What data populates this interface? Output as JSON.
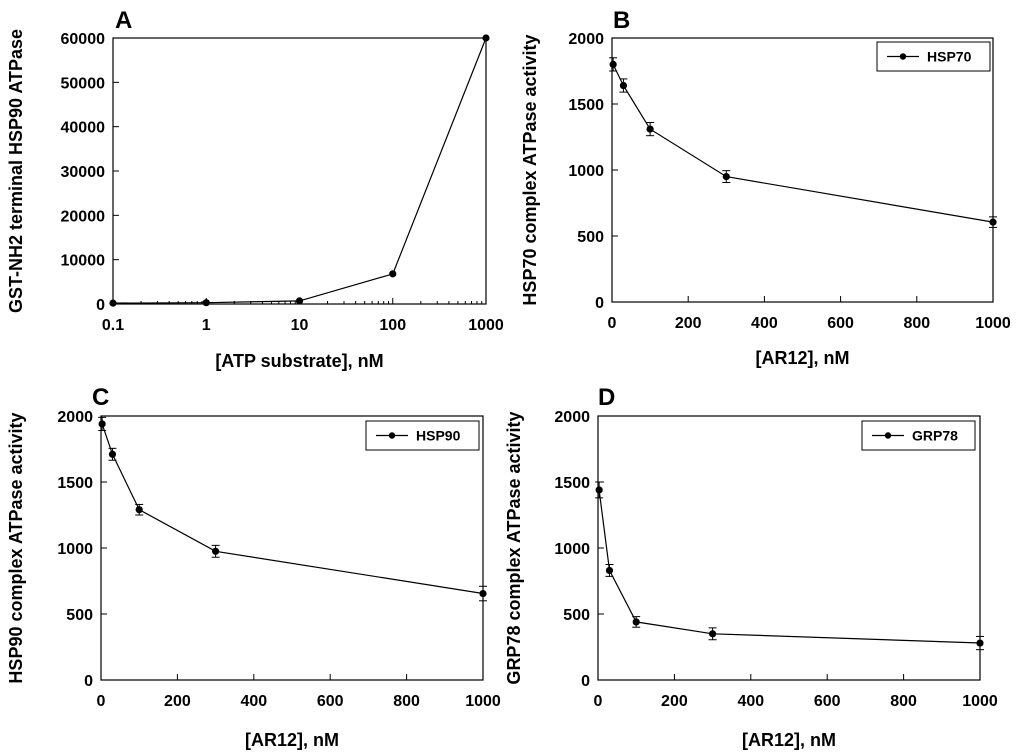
{
  "chart_data": [
    {
      "type": "line",
      "panel": "A",
      "ylabel": "GST-NH2 terminal HSP90 ATPase",
      "xlabel": "[ATP substrate], nM",
      "xscale": "log",
      "xlim": [
        0.1,
        1000
      ],
      "ylim": [
        0,
        60000
      ],
      "xticks": [
        0.1,
        1,
        10,
        100,
        1000
      ],
      "xtick_labels": [
        "0.1",
        "1",
        "10",
        "100",
        "1000"
      ],
      "yticks": [
        0,
        10000,
        20000,
        30000,
        40000,
        50000,
        60000
      ],
      "ytick_labels": [
        "0",
        "10000",
        "20000",
        "30000",
        "40000",
        "50000",
        "60000"
      ],
      "legend": null,
      "series": [
        {
          "name": "",
          "x": [
            0.1,
            1,
            10,
            100,
            1000
          ],
          "y": [
            200,
            300,
            700,
            6800,
            60000
          ],
          "err": [
            0,
            0,
            0,
            0,
            0
          ]
        }
      ]
    },
    {
      "type": "line",
      "panel": "B",
      "ylabel": "HSP70 complex ATPase activity",
      "xlabel": "[AR12], nM",
      "xscale": "linear",
      "xlim": [
        0,
        1000
      ],
      "ylim": [
        0,
        2000
      ],
      "xticks": [
        0,
        200,
        400,
        600,
        800,
        1000
      ],
      "xtick_labels": [
        "0",
        "200",
        "400",
        "600",
        "800",
        "1000"
      ],
      "yticks": [
        0,
        500,
        1000,
        1500,
        2000
      ],
      "ytick_labels": [
        "0",
        "500",
        "1000",
        "1500",
        "2000"
      ],
      "legend": "HSP70",
      "series": [
        {
          "name": "HSP70",
          "x": [
            3,
            30,
            100,
            300,
            1000
          ],
          "y": [
            1800,
            1640,
            1310,
            950,
            605
          ],
          "err": [
            50,
            50,
            50,
            45,
            40
          ]
        }
      ]
    },
    {
      "type": "line",
      "panel": "C",
      "ylabel": "HSP90 complex ATPase activity",
      "xlabel": "[AR12], nM",
      "xscale": "linear",
      "xlim": [
        0,
        1000
      ],
      "ylim": [
        0,
        2000
      ],
      "xticks": [
        0,
        200,
        400,
        600,
        800,
        1000
      ],
      "xtick_labels": [
        "0",
        "200",
        "400",
        "600",
        "800",
        "1000"
      ],
      "yticks": [
        0,
        500,
        1000,
        1500,
        2000
      ],
      "ytick_labels": [
        "0",
        "500",
        "1000",
        "1500",
        "2000"
      ],
      "legend": "HSP90",
      "series": [
        {
          "name": "HSP90",
          "x": [
            3,
            30,
            100,
            300,
            1000
          ],
          "y": [
            1940,
            1710,
            1290,
            975,
            655
          ],
          "err": [
            50,
            45,
            40,
            45,
            55
          ]
        }
      ]
    },
    {
      "type": "line",
      "panel": "D",
      "ylabel": "GRP78 complex ATPase activity",
      "xlabel": "[AR12], nM",
      "xscale": "linear",
      "xlim": [
        0,
        1000
      ],
      "ylim": [
        0,
        2000
      ],
      "xticks": [
        0,
        200,
        400,
        600,
        800,
        1000
      ],
      "xtick_labels": [
        "0",
        "200",
        "400",
        "600",
        "800",
        "1000"
      ],
      "yticks": [
        0,
        500,
        1000,
        1500,
        2000
      ],
      "ytick_labels": [
        "0",
        "500",
        "1000",
        "1500",
        "2000"
      ],
      "legend": "GRP78",
      "series": [
        {
          "name": "GRP78",
          "x": [
            3,
            30,
            100,
            300,
            1000
          ],
          "y": [
            1440,
            830,
            440,
            350,
            280
          ],
          "err": [
            60,
            45,
            40,
            45,
            50
          ]
        }
      ]
    }
  ]
}
